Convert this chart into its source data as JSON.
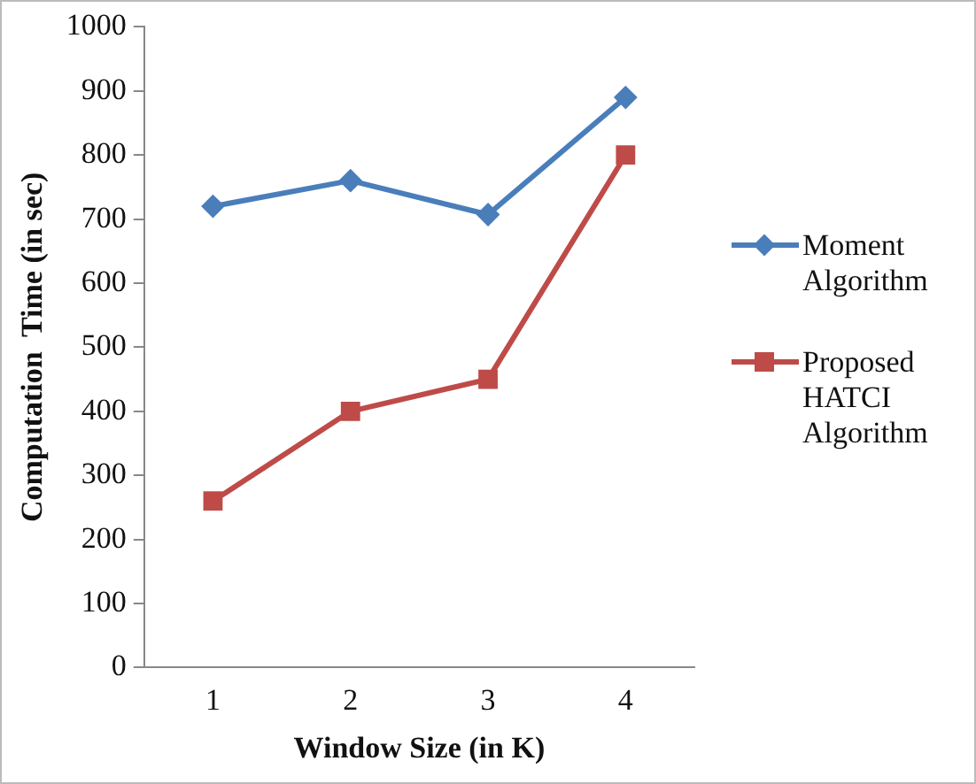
{
  "chart_data": {
    "type": "line",
    "xlabel": "Window Size (in K)",
    "ylabel": "Computation  Time (in sec)",
    "categories": [
      "1",
      "2",
      "3",
      "4"
    ],
    "series": [
      {
        "name": "Moment Algorithm",
        "color": "#4a7ebb",
        "marker": "diamond",
        "values": [
          720,
          760,
          707,
          890
        ]
      },
      {
        "name": "Proposed HATCI Algorithm",
        "color": "#be4b48",
        "marker": "square",
        "values": [
          260,
          400,
          450,
          800
        ]
      }
    ],
    "ylim": [
      0,
      1000
    ],
    "yticks": [
      0,
      100,
      200,
      300,
      400,
      500,
      600,
      700,
      800,
      900,
      1000
    ],
    "grid": false,
    "legend": "right"
  }
}
